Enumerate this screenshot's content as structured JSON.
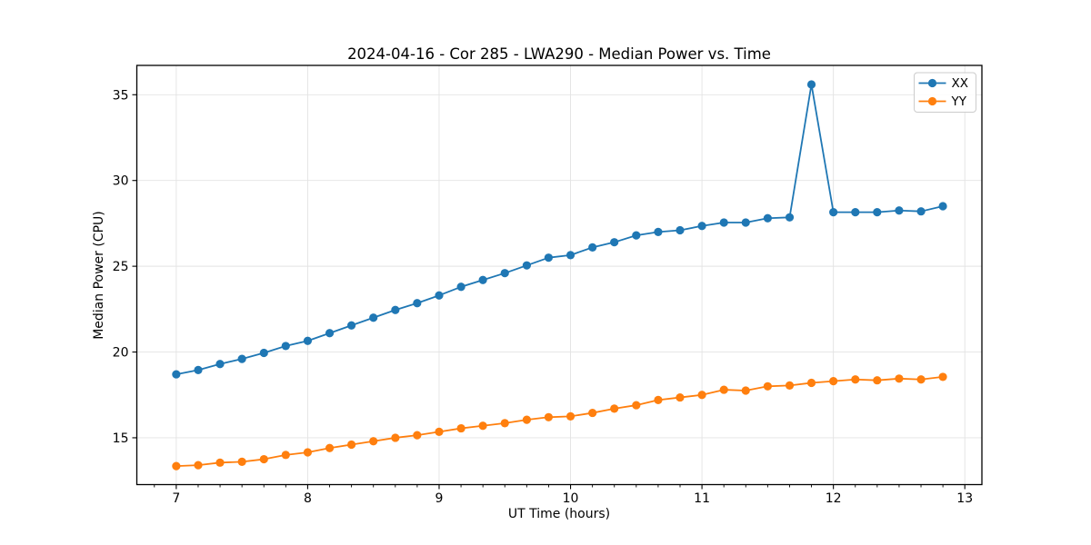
{
  "figure": {
    "title": "2024-04-16 - Cor 285 - LWA290 - Median Power vs. Time",
    "xlabel": "UT Time (hours)",
    "ylabel": "Median Power (CPU)"
  },
  "legend": {
    "entries": [
      "XX",
      "YY"
    ],
    "position": "upper right"
  },
  "chart_data": {
    "type": "line",
    "title": "2024-04-16 - Cor 285 - LWA290 - Median Power vs. Time",
    "xlabel": "UT Time (hours)",
    "ylabel": "Median Power (CPU)",
    "xlim": [
      6.7,
      13.13
    ],
    "ylim": [
      12.27,
      36.71
    ],
    "xticks": [
      7,
      8,
      9,
      10,
      11,
      12,
      13
    ],
    "yticks": [
      15,
      20,
      25,
      30,
      35
    ],
    "x_minor_tick_step_hours": 0.16667,
    "grid": true,
    "legend_position": "upper right",
    "marker": "circle",
    "x": [
      7.0,
      7.167,
      7.333,
      7.5,
      7.667,
      7.833,
      8.0,
      8.167,
      8.333,
      8.5,
      8.667,
      8.833,
      9.0,
      9.167,
      9.333,
      9.5,
      9.667,
      9.833,
      10.0,
      10.167,
      10.333,
      10.5,
      10.667,
      10.833,
      11.0,
      11.167,
      11.333,
      11.5,
      11.667,
      11.833,
      12.0,
      12.167,
      12.333,
      12.5,
      12.667,
      12.833
    ],
    "series": [
      {
        "name": "XX",
        "color": "#1f77b4",
        "values": [
          18.7,
          18.95,
          19.3,
          19.6,
          19.95,
          20.35,
          20.65,
          21.1,
          21.55,
          22.0,
          22.45,
          22.85,
          23.3,
          23.8,
          24.2,
          24.6,
          25.05,
          25.5,
          25.65,
          26.1,
          26.4,
          26.8,
          27.0,
          27.1,
          27.35,
          27.55,
          27.55,
          27.8,
          27.85,
          35.6,
          28.15,
          28.15,
          28.15,
          28.25,
          28.2,
          28.5
        ]
      },
      {
        "name": "YY",
        "color": "#ff7f0e",
        "values": [
          13.35,
          13.4,
          13.55,
          13.6,
          13.75,
          14.0,
          14.15,
          14.4,
          14.6,
          14.8,
          15.0,
          15.15,
          15.35,
          15.55,
          15.7,
          15.85,
          16.05,
          16.2,
          16.25,
          16.45,
          16.7,
          16.9,
          17.2,
          17.35,
          17.5,
          17.8,
          17.75,
          18.0,
          18.05,
          18.2,
          18.3,
          18.4,
          18.35,
          18.45,
          18.4,
          18.55
        ]
      }
    ],
    "style": {
      "grid_color": "#e3e3e3",
      "spine_color": "#000000",
      "background": "#ffffff",
      "legend_border": "#cccccc"
    }
  }
}
